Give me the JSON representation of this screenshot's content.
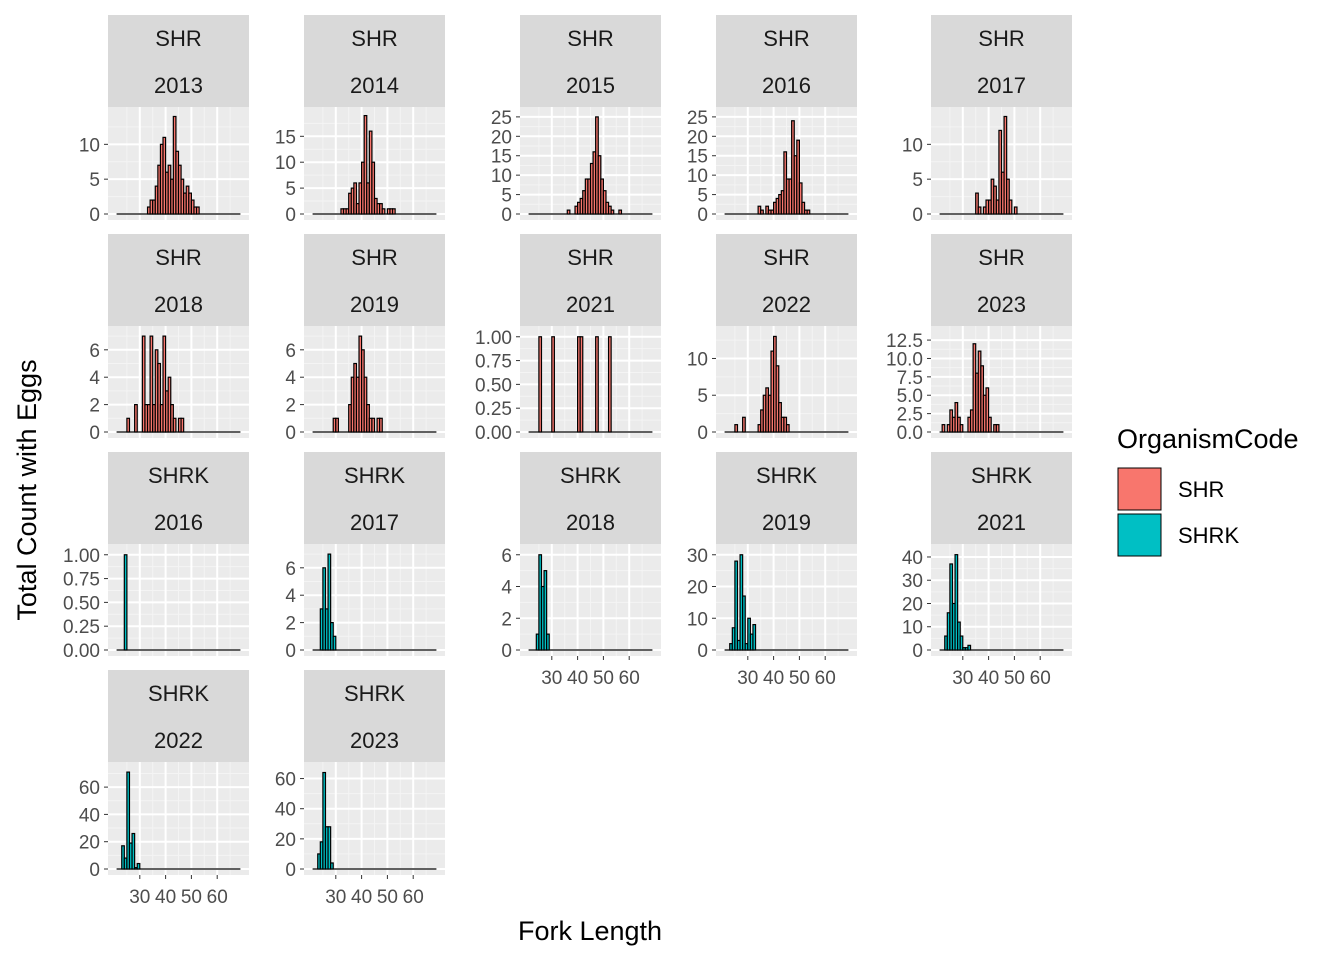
{
  "chart_data": {
    "type": "bar",
    "subtype": "faceted-histogram",
    "xlabel": "Fork Length",
    "ylabel": "Total Count with Eggs",
    "x_ticks": [
      30,
      40,
      50,
      60
    ],
    "xlim": [
      20,
      70
    ],
    "legend": {
      "title": "OrganismCode",
      "position": "right",
      "entries": [
        {
          "name": "SHR",
          "color": "#F8766D"
        },
        {
          "name": "SHRK",
          "color": "#00BFC4"
        }
      ]
    },
    "facets": [
      {
        "code": "SHR",
        "year": "2013",
        "ylim": [
          0,
          14.5
        ],
        "yticks": [
          0,
          5,
          10
        ],
        "ytick_labels": [
          "0",
          "5",
          "10"
        ],
        "bars": [
          [
            33,
            1
          ],
          [
            34,
            2
          ],
          [
            35,
            2
          ],
          [
            36,
            4
          ],
          [
            37,
            7
          ],
          [
            38,
            10
          ],
          [
            39,
            11
          ],
          [
            40,
            6
          ],
          [
            41,
            7
          ],
          [
            42,
            5
          ],
          [
            43,
            14
          ],
          [
            44,
            9
          ],
          [
            45,
            7
          ],
          [
            46,
            5
          ],
          [
            47,
            3
          ],
          [
            48,
            4
          ],
          [
            49,
            3
          ],
          [
            50,
            2
          ],
          [
            51,
            1
          ],
          [
            52,
            1
          ]
        ]
      },
      {
        "code": "SHR",
        "year": "2014",
        "ylim": [
          0,
          19.5
        ],
        "yticks": [
          0,
          5,
          10,
          15
        ],
        "ytick_labels": [
          "0",
          "5",
          "10",
          "15"
        ],
        "bars": [
          [
            32,
            1
          ],
          [
            33,
            1
          ],
          [
            34,
            1
          ],
          [
            35,
            4
          ],
          [
            36,
            5
          ],
          [
            37,
            6
          ],
          [
            38,
            2
          ],
          [
            39,
            6
          ],
          [
            40,
            10
          ],
          [
            41,
            19
          ],
          [
            42,
            6
          ],
          [
            43,
            16
          ],
          [
            44,
            10
          ],
          [
            45,
            3
          ],
          [
            46,
            2
          ],
          [
            47,
            2
          ],
          [
            48,
            1
          ],
          [
            50,
            1
          ],
          [
            51,
            1
          ],
          [
            52,
            1
          ]
        ]
      },
      {
        "code": "SHR",
        "year": "2015",
        "ylim": [
          0,
          26
        ],
        "yticks": [
          0,
          5,
          10,
          15,
          20,
          25
        ],
        "ytick_labels": [
          "0",
          "5",
          "10",
          "15",
          "20",
          "25"
        ],
        "bars": [
          [
            36,
            1
          ],
          [
            39,
            2
          ],
          [
            40,
            3
          ],
          [
            41,
            4
          ],
          [
            42,
            6
          ],
          [
            43,
            9
          ],
          [
            44,
            9
          ],
          [
            45,
            13
          ],
          [
            46,
            16
          ],
          [
            47,
            25
          ],
          [
            48,
            15
          ],
          [
            49,
            9
          ],
          [
            50,
            6
          ],
          [
            51,
            3
          ],
          [
            52,
            2
          ],
          [
            53,
            1
          ],
          [
            56,
            1
          ]
        ]
      },
      {
        "code": "SHR",
        "year": "2016",
        "ylim": [
          0,
          26
        ],
        "yticks": [
          0,
          5,
          10,
          15,
          20,
          25
        ],
        "ytick_labels": [
          "0",
          "5",
          "10",
          "15",
          "20",
          "25"
        ],
        "bars": [
          [
            34,
            2
          ],
          [
            35,
            1
          ],
          [
            37,
            2
          ],
          [
            38,
            1
          ],
          [
            39,
            1
          ],
          [
            40,
            3
          ],
          [
            41,
            4
          ],
          [
            42,
            5
          ],
          [
            43,
            6
          ],
          [
            44,
            16
          ],
          [
            45,
            9
          ],
          [
            46,
            9
          ],
          [
            47,
            24
          ],
          [
            48,
            15
          ],
          [
            49,
            19
          ],
          [
            50,
            8
          ],
          [
            51,
            3
          ],
          [
            52,
            1
          ],
          [
            53,
            1
          ]
        ]
      },
      {
        "code": "SHR",
        "year": "2017",
        "ylim": [
          0,
          14.5
        ],
        "yticks": [
          0,
          5,
          10
        ],
        "ytick_labels": [
          "0",
          "5",
          "10"
        ],
        "bars": [
          [
            35,
            3
          ],
          [
            36,
            1
          ],
          [
            38,
            1
          ],
          [
            39,
            2
          ],
          [
            40,
            2
          ],
          [
            41,
            5
          ],
          [
            42,
            4
          ],
          [
            43,
            2
          ],
          [
            44,
            12
          ],
          [
            45,
            6
          ],
          [
            46,
            14
          ],
          [
            47,
            5
          ],
          [
            48,
            2
          ],
          [
            50,
            1
          ]
        ]
      },
      {
        "code": "SHR",
        "year": "2018",
        "ylim": [
          0,
          7.3
        ],
        "yticks": [
          0,
          2,
          4,
          6
        ],
        "ytick_labels": [
          "0",
          "2",
          "4",
          "6"
        ],
        "bars": [
          [
            25,
            1
          ],
          [
            28,
            2
          ],
          [
            31,
            7
          ],
          [
            32,
            2
          ],
          [
            33,
            2
          ],
          [
            34,
            7
          ],
          [
            35,
            2
          ],
          [
            36,
            6
          ],
          [
            37,
            5
          ],
          [
            38,
            2
          ],
          [
            39,
            7
          ],
          [
            40,
            3
          ],
          [
            41,
            4
          ],
          [
            42,
            2
          ],
          [
            43,
            1
          ],
          [
            45,
            1
          ],
          [
            46,
            1
          ]
        ]
      },
      {
        "code": "SHR",
        "year": "2019",
        "ylim": [
          0,
          7.3
        ],
        "yticks": [
          0,
          2,
          4,
          6
        ],
        "ytick_labels": [
          "0",
          "2",
          "4",
          "6"
        ],
        "bars": [
          [
            29,
            1
          ],
          [
            30,
            1
          ],
          [
            35,
            2
          ],
          [
            36,
            4
          ],
          [
            37,
            5
          ],
          [
            38,
            4
          ],
          [
            39,
            7
          ],
          [
            40,
            6
          ],
          [
            41,
            4
          ],
          [
            42,
            2
          ],
          [
            43,
            1
          ],
          [
            44,
            1
          ],
          [
            46,
            1
          ],
          [
            47,
            1
          ]
        ]
      },
      {
        "code": "SHR",
        "year": "2021",
        "ylim": [
          0,
          1.05
        ],
        "yticks": [
          0,
          0.25,
          0.5,
          0.75,
          1
        ],
        "ytick_labels": [
          "0.00",
          "0.25",
          "0.50",
          "0.75",
          "1.00"
        ],
        "bars": [
          [
            25,
            1
          ],
          [
            30,
            1
          ],
          [
            40,
            1
          ],
          [
            41,
            1
          ],
          [
            47,
            1
          ],
          [
            52,
            1
          ]
        ]
      },
      {
        "code": "SHR",
        "year": "2022",
        "ylim": [
          0,
          13.6
        ],
        "yticks": [
          0,
          5,
          10
        ],
        "ytick_labels": [
          "0",
          "5",
          "10"
        ],
        "bars": [
          [
            25,
            1
          ],
          [
            28,
            2
          ],
          [
            34,
            1
          ],
          [
            35,
            3
          ],
          [
            36,
            5
          ],
          [
            37,
            6
          ],
          [
            38,
            5
          ],
          [
            39,
            11
          ],
          [
            40,
            13
          ],
          [
            41,
            9
          ],
          [
            42,
            4
          ],
          [
            43,
            2
          ],
          [
            44,
            2
          ],
          [
            45,
            1
          ]
        ]
      },
      {
        "code": "SHR",
        "year": "2023",
        "ylim": [
          0,
          13.6
        ],
        "yticks": [
          0,
          2.5,
          5,
          7.5,
          10,
          12.5
        ],
        "ytick_labels": [
          "0.0",
          "2.5",
          "5.0",
          "7.5",
          "10.0",
          "12.5"
        ],
        "bars": [
          [
            22,
            1
          ],
          [
            24,
            1
          ],
          [
            25,
            3
          ],
          [
            26,
            2
          ],
          [
            27,
            4
          ],
          [
            28,
            2
          ],
          [
            29,
            1
          ],
          [
            32,
            2
          ],
          [
            33,
            3
          ],
          [
            34,
            12
          ],
          [
            35,
            8
          ],
          [
            36,
            11
          ],
          [
            37,
            9
          ],
          [
            38,
            5
          ],
          [
            39,
            6
          ],
          [
            40,
            2
          ],
          [
            42,
            1
          ],
          [
            43,
            1
          ]
        ]
      },
      {
        "code": "SHRK",
        "year": "2016",
        "ylim": [
          0,
          1.05
        ],
        "yticks": [
          0,
          0.25,
          0.5,
          0.75,
          1
        ],
        "ytick_labels": [
          "0.00",
          "0.25",
          "0.50",
          "0.75",
          "1.00"
        ],
        "bars": [
          [
            24,
            1
          ]
        ]
      },
      {
        "code": "SHRK",
        "year": "2017",
        "ylim": [
          0,
          7.3
        ],
        "yticks": [
          0,
          2,
          4,
          6
        ],
        "ytick_labels": [
          "0",
          "2",
          "4",
          "6"
        ],
        "bars": [
          [
            24,
            3
          ],
          [
            25,
            6
          ],
          [
            26,
            3
          ],
          [
            27,
            7
          ],
          [
            28,
            2
          ],
          [
            29,
            1
          ]
        ]
      },
      {
        "code": "SHRK",
        "year": "2018",
        "ylim": [
          0,
          6.3
        ],
        "yticks": [
          0,
          2,
          4,
          6
        ],
        "ytick_labels": [
          "0",
          "2",
          "4",
          "6"
        ],
        "bars": [
          [
            24,
            1
          ],
          [
            25,
            6
          ],
          [
            26,
            4
          ],
          [
            27,
            5
          ],
          [
            28,
            1
          ]
        ]
      },
      {
        "code": "SHRK",
        "year": "2019",
        "ylim": [
          0,
          31.5
        ],
        "yticks": [
          0,
          10,
          20,
          30
        ],
        "ytick_labels": [
          "0",
          "10",
          "20",
          "30"
        ],
        "bars": [
          [
            23,
            2
          ],
          [
            24,
            7
          ],
          [
            25,
            28
          ],
          [
            26,
            3
          ],
          [
            27,
            30
          ],
          [
            28,
            17
          ],
          [
            29,
            2
          ],
          [
            30,
            10
          ],
          [
            31,
            5
          ],
          [
            32,
            8
          ]
        ]
      },
      {
        "code": "SHRK",
        "year": "2021",
        "ylim": [
          0,
          43
        ],
        "yticks": [
          0,
          10,
          20,
          30,
          40
        ],
        "ytick_labels": [
          "0",
          "10",
          "20",
          "30",
          "40"
        ],
        "bars": [
          [
            23,
            6
          ],
          [
            24,
            16
          ],
          [
            25,
            37
          ],
          [
            26,
            20
          ],
          [
            27,
            41
          ],
          [
            28,
            12
          ],
          [
            29,
            6
          ],
          [
            30,
            1
          ],
          [
            31,
            1
          ],
          [
            32,
            2
          ]
        ]
      },
      {
        "code": "SHRK",
        "year": "2022",
        "ylim": [
          0,
          74
        ],
        "yticks": [
          0,
          20,
          40,
          60
        ],
        "ytick_labels": [
          "0",
          "20",
          "40",
          "60"
        ],
        "bars": [
          [
            23,
            17
          ],
          [
            24,
            8
          ],
          [
            25,
            71
          ],
          [
            26,
            19
          ],
          [
            27,
            26
          ],
          [
            28,
            1
          ],
          [
            29,
            4
          ]
        ]
      },
      {
        "code": "SHRK",
        "year": "2023",
        "ylim": [
          0,
          67
        ],
        "yticks": [
          0,
          20,
          40,
          60
        ],
        "ytick_labels": [
          "0",
          "20",
          "40",
          "60"
        ],
        "bars": [
          [
            23,
            10
          ],
          [
            24,
            18
          ],
          [
            25,
            64
          ],
          [
            26,
            28
          ],
          [
            27,
            28
          ],
          [
            28,
            4
          ]
        ]
      }
    ]
  }
}
